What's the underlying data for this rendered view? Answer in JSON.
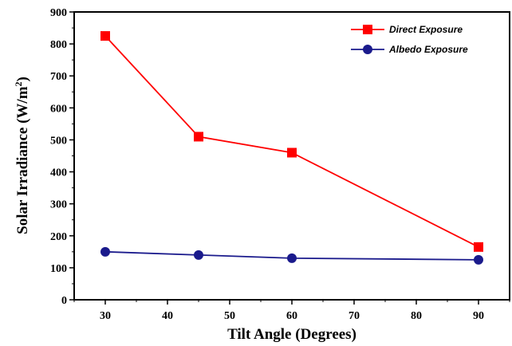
{
  "chart_data": {
    "type": "line",
    "title": "",
    "xlabel": "Tilt Angle (Degrees)",
    "ylabel": "Solar Irradiance (W/m",
    "ylabel_superscript": "2",
    "ylabel_suffix": ")",
    "xlim": [
      25,
      95
    ],
    "ylim": [
      0,
      900
    ],
    "x_ticks": [
      30,
      40,
      50,
      60,
      70,
      80,
      90
    ],
    "y_ticks": [
      0,
      100,
      200,
      300,
      400,
      500,
      600,
      700,
      800,
      900
    ],
    "grid": false,
    "legend_position": "top-right",
    "series": [
      {
        "name": "Direct Exposure",
        "color": "#ff0000",
        "marker": "square",
        "x": [
          30,
          45,
          60,
          90
        ],
        "y": [
          825,
          510,
          460,
          165
        ]
      },
      {
        "name": "Albedo Exposure",
        "color": "#1a1a8c",
        "marker": "circle",
        "x": [
          30,
          45,
          60,
          90
        ],
        "y": [
          150,
          140,
          130,
          125
        ]
      }
    ]
  }
}
